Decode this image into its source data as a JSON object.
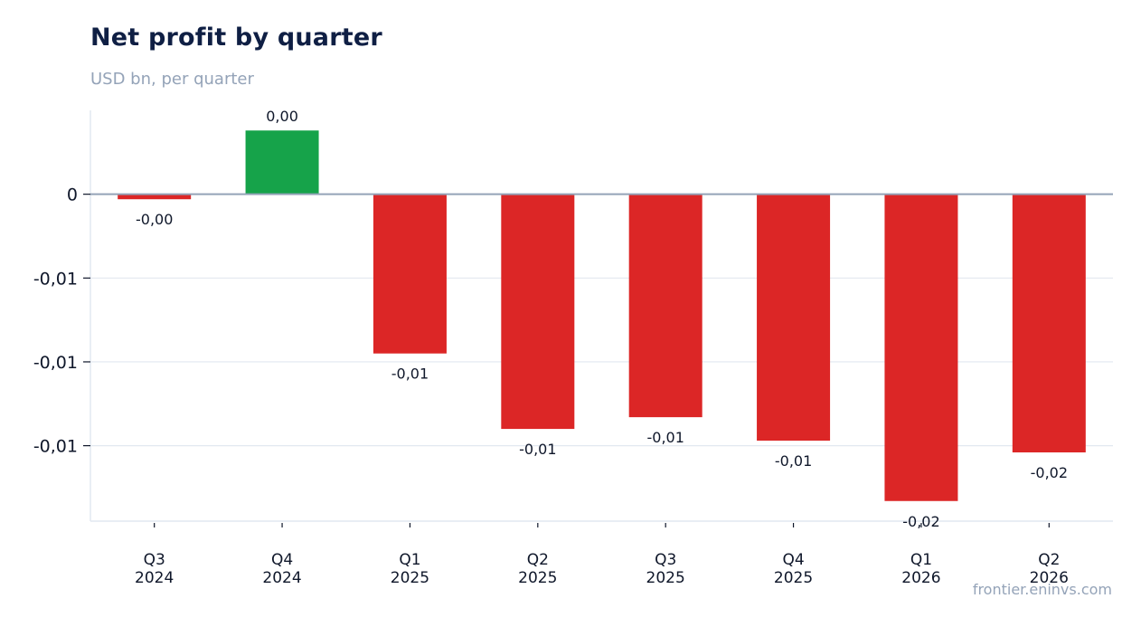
{
  "title": "Net profit by quarter",
  "subtitle": "USD bn, per quarter",
  "source": "frontier.eninvs.com",
  "colors": {
    "positive": "#16a34a",
    "negative": "#dc2626",
    "zero_line": "#94a3b8",
    "grid": "#e2e8f0",
    "text": "#0f1f44"
  },
  "chart_data": {
    "type": "bar",
    "categories": [
      "Q3 2024",
      "Q4 2024",
      "Q1 2025",
      "Q2 2025",
      "Q3 2025",
      "Q4 2025",
      "Q1 2026",
      "Q2 2026"
    ],
    "category_lines": [
      [
        "Q3",
        "2024"
      ],
      [
        "Q4",
        "2024"
      ],
      [
        "Q1",
        "2025"
      ],
      [
        "Q2",
        "2025"
      ],
      [
        "Q3",
        "2025"
      ],
      [
        "Q4",
        "2025"
      ],
      [
        "Q1",
        "2026"
      ],
      [
        "Q2",
        "2026"
      ]
    ],
    "values": [
      -0.0003,
      0.0038,
      -0.0095,
      -0.014,
      -0.0133,
      -0.0147,
      -0.0183,
      -0.0154
    ],
    "data_labels": [
      "-0,00",
      "0,00",
      "-0,01",
      "-0,01",
      "-0,01",
      "-0,01",
      "-0,02",
      "-0,02"
    ],
    "y_ticks": [
      0,
      -0.005,
      -0.01,
      -0.015
    ],
    "y_tick_labels": [
      "0",
      "-0,01",
      "-0,01",
      "-0,01"
    ],
    "ylim": [
      -0.0195,
      0.005
    ],
    "grid": true,
    "xlabel": "",
    "ylabel": ""
  }
}
